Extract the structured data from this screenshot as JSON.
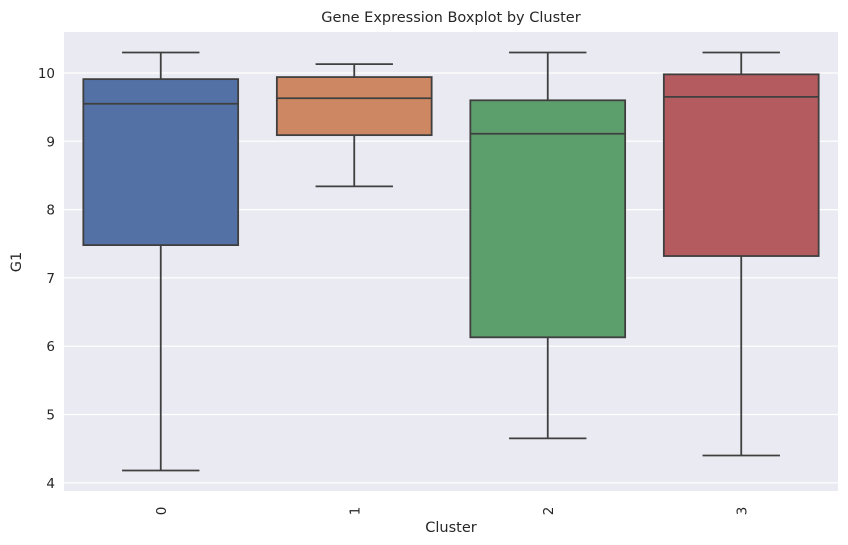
{
  "chart_data": {
    "type": "box",
    "title": "Gene Expression Boxplot by Cluster",
    "xlabel": "Cluster",
    "ylabel": "G1",
    "categories": [
      "0",
      "1",
      "2",
      "3"
    ],
    "yticks": [
      4,
      5,
      6,
      7,
      8,
      9,
      10
    ],
    "ylim": [
      3.88,
      10.6
    ],
    "grid": true,
    "colors": [
      "#5471a5",
      "#cd8762",
      "#5c9f6d",
      "#b45b5f"
    ],
    "boxes": [
      {
        "category": "0",
        "min": 4.18,
        "q1": 7.48,
        "median": 9.55,
        "q3": 9.91,
        "max": 10.3
      },
      {
        "category": "1",
        "min": 8.34,
        "q1": 9.09,
        "median": 9.63,
        "q3": 9.94,
        "max": 10.13
      },
      {
        "category": "2",
        "min": 4.65,
        "q1": 6.13,
        "median": 9.11,
        "q3": 9.6,
        "max": 10.3
      },
      {
        "category": "3",
        "min": 4.4,
        "q1": 7.32,
        "median": 9.65,
        "q3": 9.98,
        "max": 10.3
      }
    ]
  }
}
